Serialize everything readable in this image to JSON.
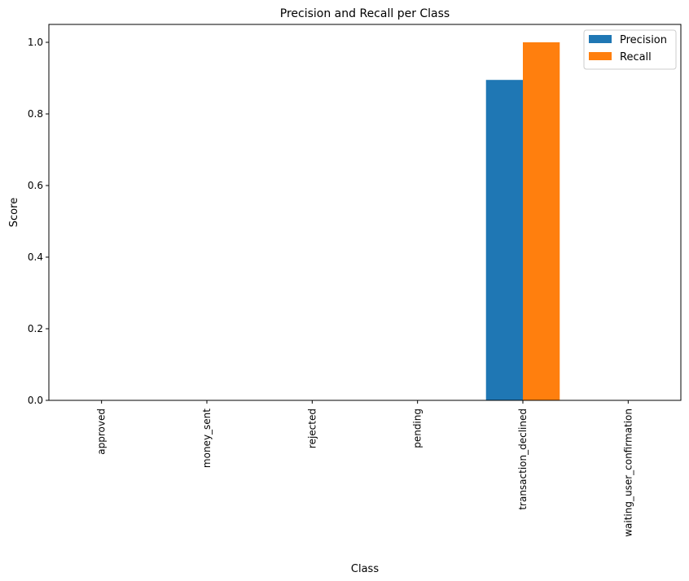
{
  "chart_data": {
    "type": "bar",
    "title": "Precision and Recall per Class",
    "xlabel": "Class",
    "ylabel": "Score",
    "categories": [
      "approved",
      "money_sent",
      "rejected",
      "pending",
      "transaction_declined",
      "waiting_user_confirmation"
    ],
    "series": [
      {
        "name": "Precision",
        "color": "#1f77b4",
        "values": [
          0.0,
          0.0,
          0.0,
          0.0,
          0.895,
          0.0
        ]
      },
      {
        "name": "Recall",
        "color": "#ff7f0e",
        "values": [
          0.0,
          0.0,
          0.0,
          0.0,
          1.0,
          0.0
        ]
      }
    ],
    "ylim": [
      0,
      1.05
    ],
    "yticks": [
      "0.0",
      "0.2",
      "0.4",
      "0.6",
      "0.8",
      "1.0"
    ],
    "grid": false,
    "legend_position": "top-right"
  }
}
